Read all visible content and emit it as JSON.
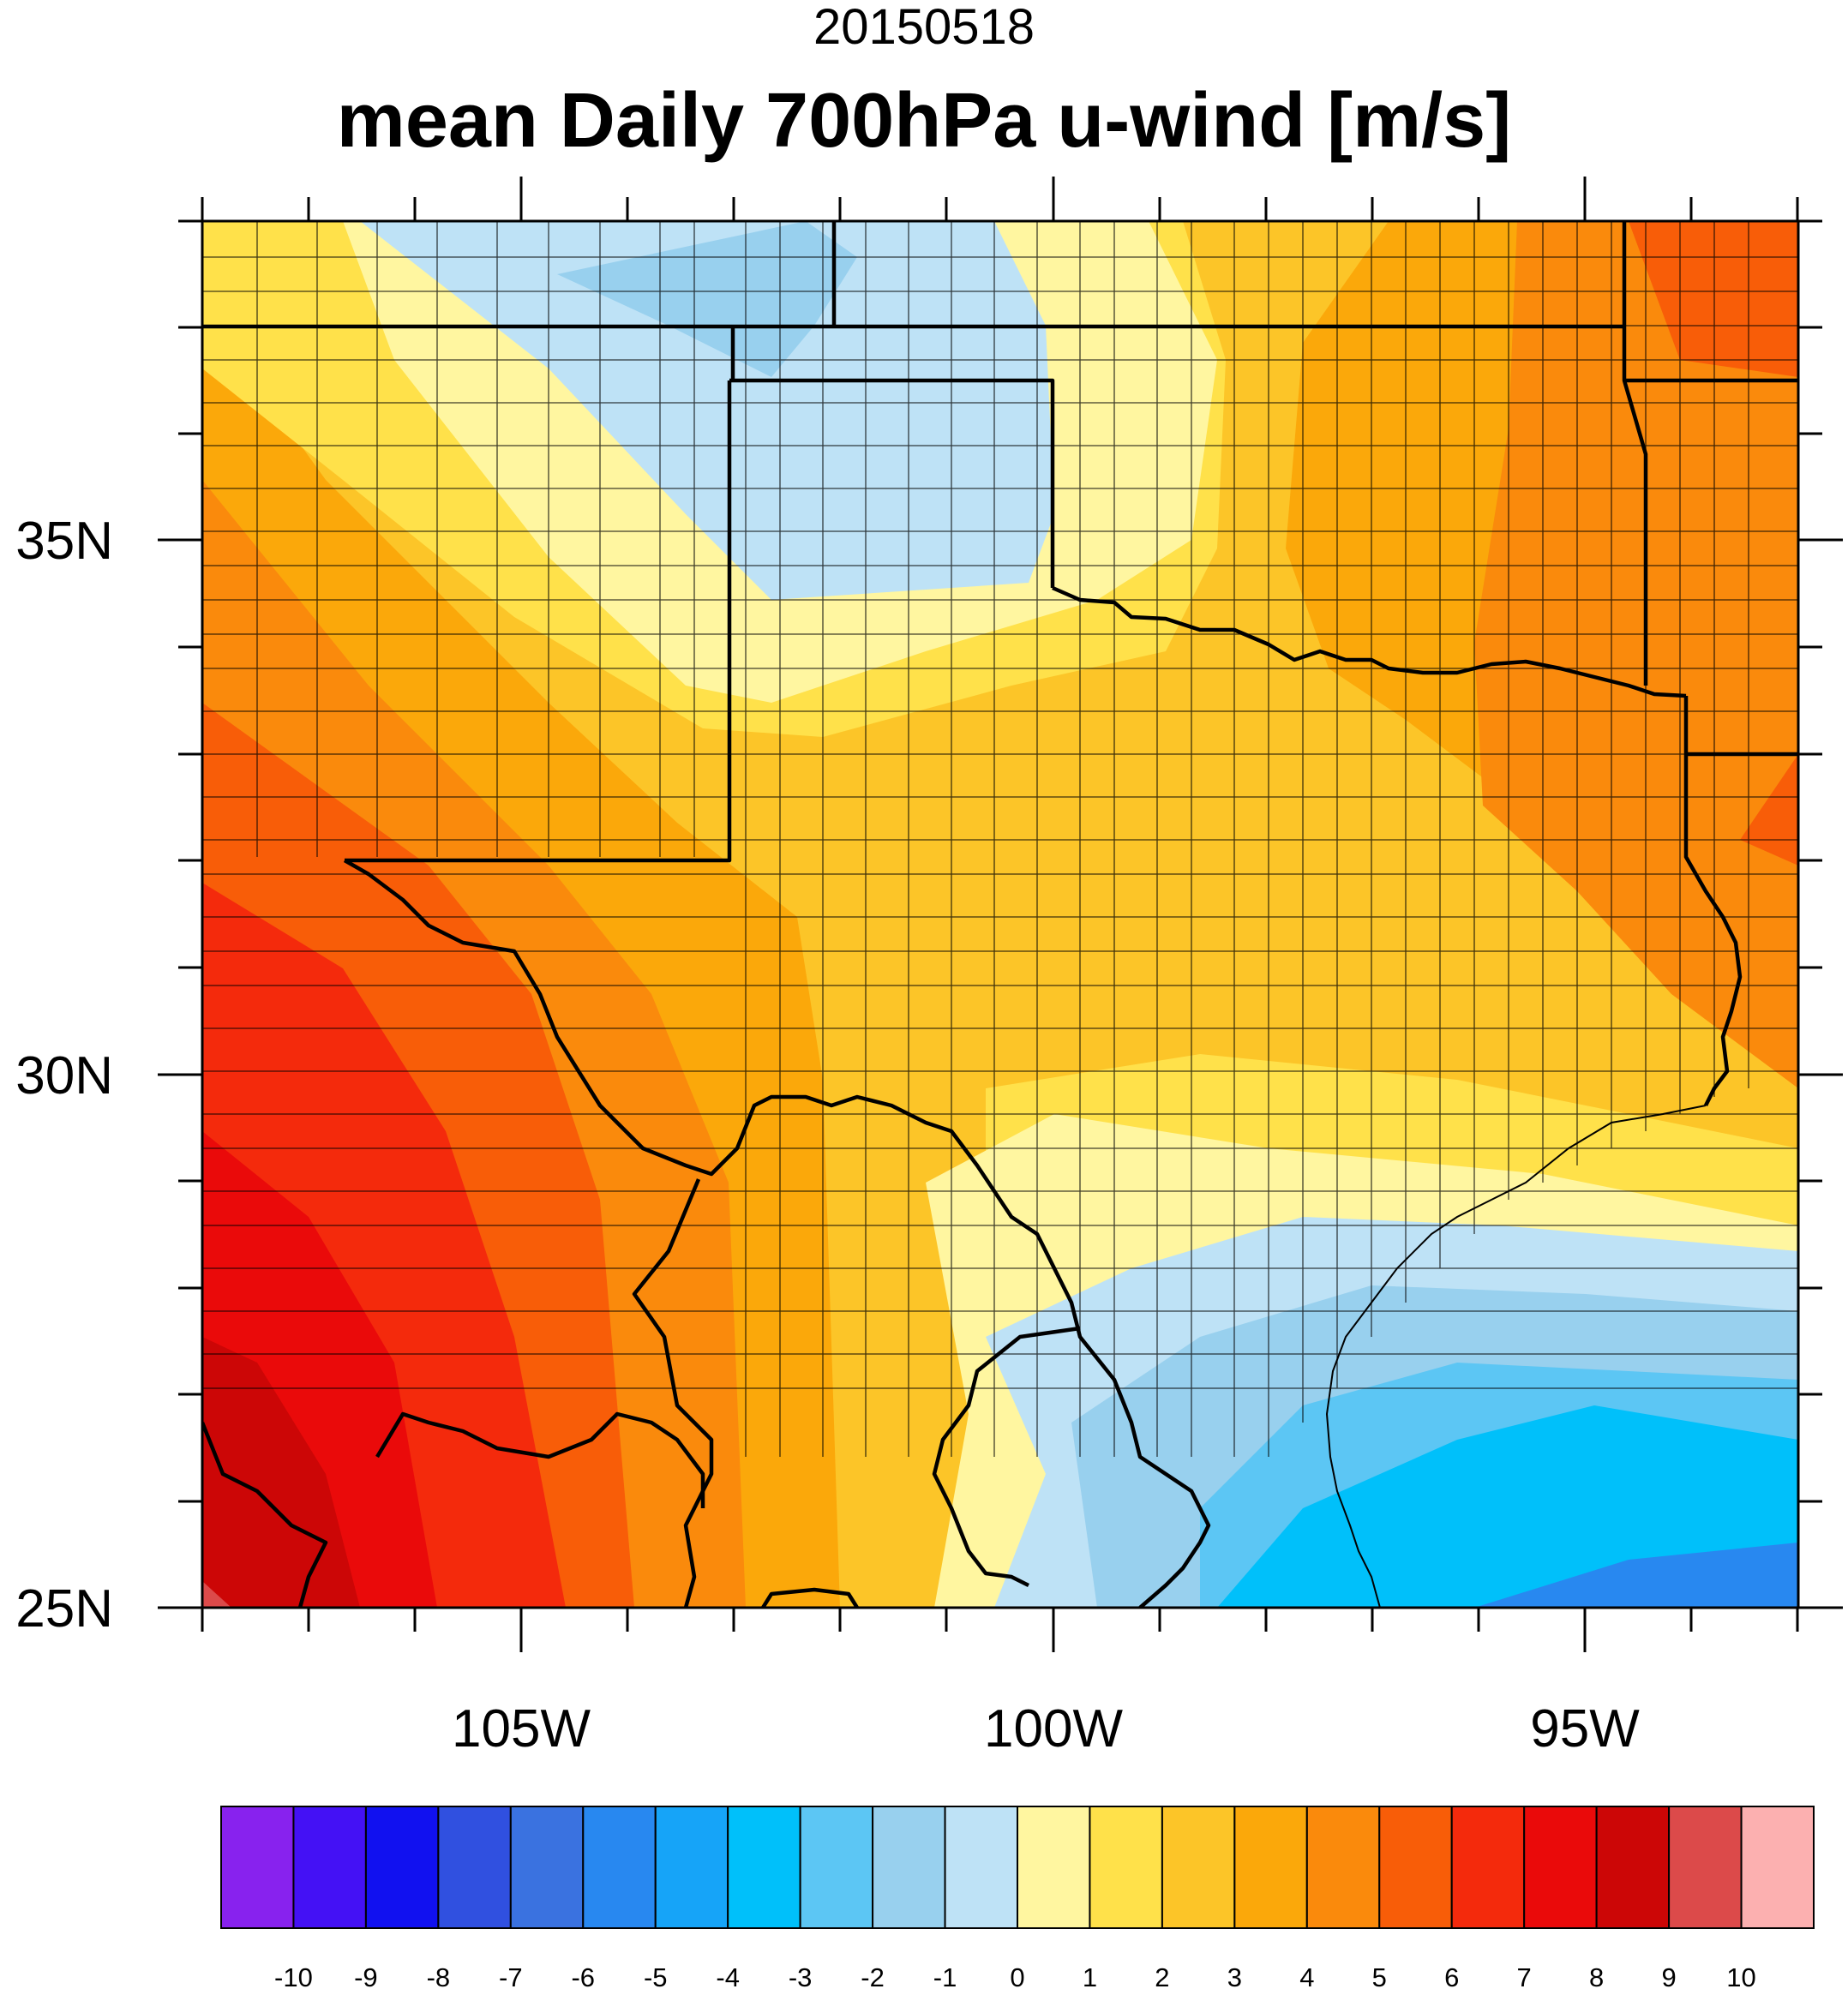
{
  "header": {
    "date": "20150518",
    "title": "mean Daily 700hPa u-wind [m/s]"
  },
  "axes": {
    "lon_labels": [
      "105W",
      "100W",
      "95W"
    ],
    "lat_labels": [
      "35N",
      "30N",
      "25N"
    ],
    "lon_range": [
      -108,
      -93
    ],
    "lat_range": [
      25,
      38
    ]
  },
  "colorbar": {
    "labels": [
      "-10",
      "-9",
      "-8",
      "-7",
      "-6",
      "-5",
      "-4",
      "-3",
      "-2",
      "-1",
      "0",
      "1",
      "2",
      "3",
      "4",
      "5",
      "6",
      "7",
      "8",
      "9",
      "10"
    ],
    "colors": [
      "#8822ee",
      "#4411f5",
      "#1111f0",
      "#3050e0",
      "#3a72e0",
      "#2888f0",
      "#16a4f8",
      "#00c0fa",
      "#5cc6f4",
      "#98d0ee",
      "#bee2f6",
      "#fff6a0",
      "#ffe14a",
      "#fcc528",
      "#fba80a",
      "#fa8a0c",
      "#f85d08",
      "#f42a0c",
      "#ea0a0a",
      "#cc0606",
      "#dc4a4a",
      "#fcb0b0"
    ]
  },
  "chart_data": {
    "type": "contour-map",
    "variable": "mean Daily 700hPa u-wind",
    "units": "m/s",
    "date": "20150518",
    "levels": [
      -10,
      -9,
      -8,
      -7,
      -6,
      -5,
      -4,
      -3,
      -2,
      -1,
      0,
      1,
      2,
      3,
      4,
      5,
      6,
      7,
      8,
      9,
      10
    ],
    "field_samples": [
      {
        "lon": -107.5,
        "lat": 25.5,
        "value": 9.5
      },
      {
        "lon": -106.5,
        "lat": 27,
        "value": 8
      },
      {
        "lon": -105,
        "lat": 29,
        "value": 7
      },
      {
        "lon": -103.5,
        "lat": 30.5,
        "value": 5
      },
      {
        "lon": -102,
        "lat": 28,
        "value": 3
      },
      {
        "lon": -101,
        "lat": 28,
        "value": 2
      },
      {
        "lon": -99.5,
        "lat": 26.5,
        "value": -1
      },
      {
        "lon": -98,
        "lat": 27.5,
        "value": -2
      },
      {
        "lon": -96,
        "lat": 26.5,
        "value": -4
      },
      {
        "lon": -94,
        "lat": 25.5,
        "value": -5
      },
      {
        "lon": -97.5,
        "lat": 29.3,
        "value": 0.5
      },
      {
        "lon": -98,
        "lat": 31,
        "value": 2.5
      },
      {
        "lon": -95,
        "lat": 32,
        "value": 4
      },
      {
        "lon": -93.5,
        "lat": 34.5,
        "value": 5
      },
      {
        "lon": -93.5,
        "lat": 37.5,
        "value": 6
      },
      {
        "lon": -104,
        "lat": 34.5,
        "value": 0.5
      },
      {
        "lon": -103,
        "lat": 36.5,
        "value": -0.5
      },
      {
        "lon": -101.5,
        "lat": 35.8,
        "value": -0.5
      },
      {
        "lon": -100.8,
        "lat": 37.5,
        "value": -0.5
      },
      {
        "lon": -99,
        "lat": 36.5,
        "value": 0.5
      },
      {
        "lon": -107.5,
        "lat": 36,
        "value": 2.5
      },
      {
        "lon": -107.5,
        "lat": 32,
        "value": 5
      }
    ]
  }
}
